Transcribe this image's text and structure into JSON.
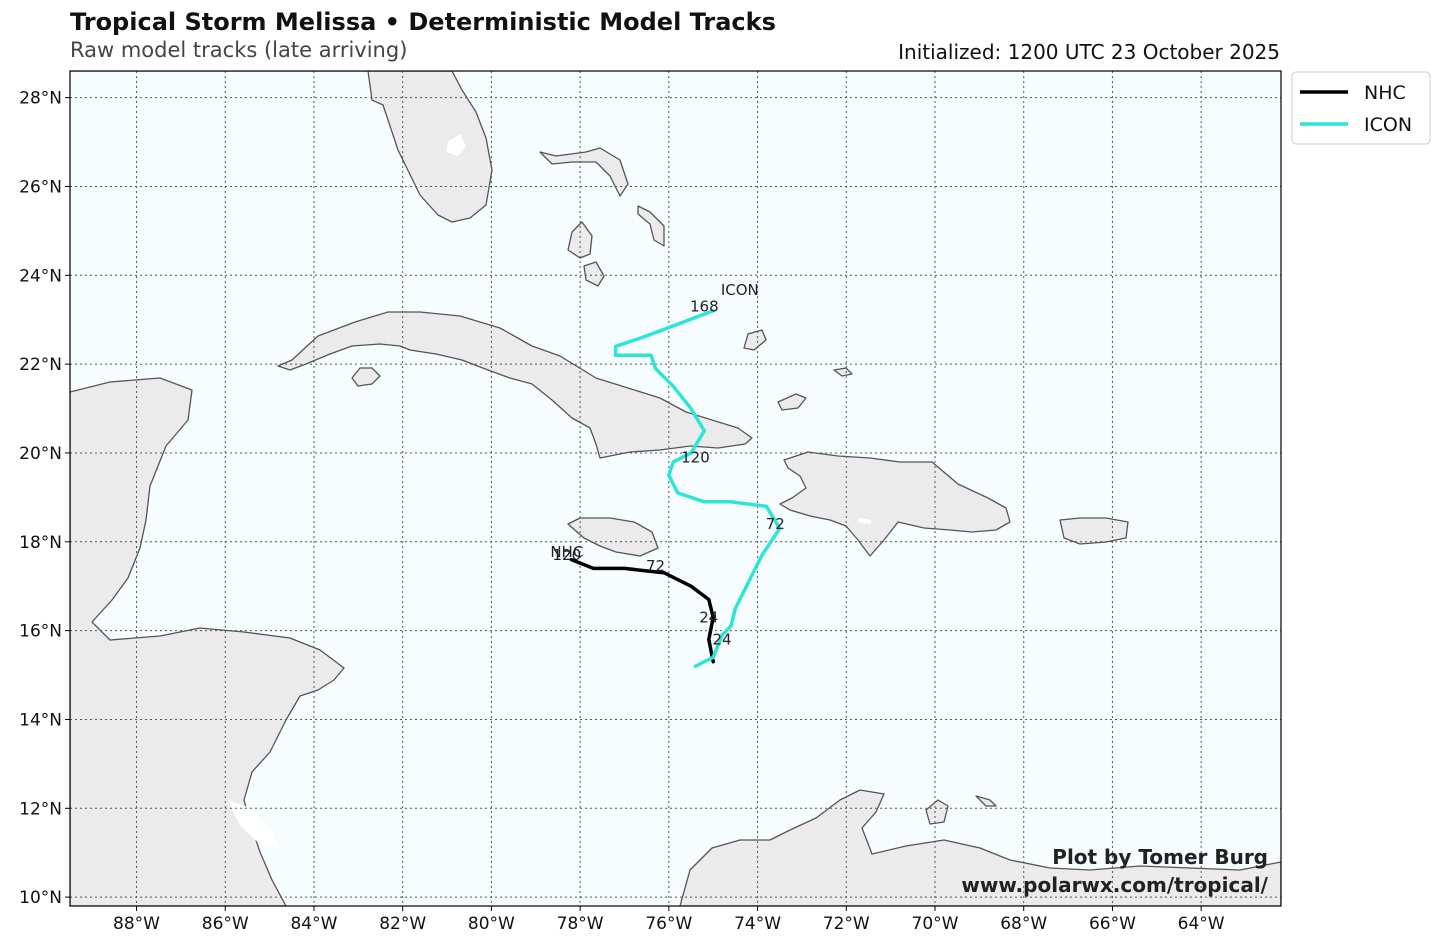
{
  "header": {
    "title": "Tropical Storm Melissa • Deterministic Model Tracks",
    "subtitle": "Raw model tracks (late arriving)",
    "initialized": "Initialized: 1200 UTC 23 October 2025"
  },
  "axes": {
    "lon_ticks": [
      "88°W",
      "86°W",
      "84°W",
      "82°W",
      "80°W",
      "78°W",
      "76°W",
      "74°W",
      "72°W",
      "70°W",
      "68°W",
      "66°W",
      "64°W"
    ],
    "lat_ticks": [
      "28°N",
      "26°N",
      "24°N",
      "22°N",
      "20°N",
      "18°N",
      "16°N",
      "14°N",
      "12°N",
      "10°N"
    ],
    "lon_range": [
      -89.5,
      -62.2
    ],
    "lat_range": [
      9.8,
      28.6
    ],
    "gridlines": "dotted"
  },
  "legend": {
    "position": "outside-top-right",
    "entries": [
      {
        "name": "NHC",
        "color": "#000000"
      },
      {
        "name": "ICON",
        "color": "#2ce4da"
      }
    ]
  },
  "tracks": [
    {
      "name": "NHC",
      "color": "#000000",
      "start_label": "NHC",
      "points": [
        [
          -75.0,
          15.3
        ],
        [
          -75.1,
          15.8
        ],
        [
          -75.0,
          16.3
        ],
        [
          -75.1,
          16.7
        ],
        [
          -75.5,
          17.0
        ],
        [
          -76.1,
          17.3
        ],
        [
          -77.0,
          17.4
        ],
        [
          -77.7,
          17.4
        ],
        [
          -78.2,
          17.6
        ]
      ],
      "hour_labels": [
        {
          "text": "24",
          "lon": -75.1,
          "lat": 16.3
        },
        {
          "text": "72",
          "lon": -76.3,
          "lat": 17.45
        },
        {
          "text": "120",
          "lon": -78.3,
          "lat": 17.7
        }
      ]
    },
    {
      "name": "ICON",
      "color": "#2ce4da",
      "start_label": "ICON",
      "points": [
        [
          -75.4,
          15.2
        ],
        [
          -75.0,
          15.4
        ],
        [
          -74.8,
          15.9
        ],
        [
          -74.6,
          16.1
        ],
        [
          -74.5,
          16.5
        ],
        [
          -74.1,
          17.3
        ],
        [
          -73.9,
          17.7
        ],
        [
          -73.5,
          18.3
        ],
        [
          -73.8,
          18.8
        ],
        [
          -74.6,
          18.9
        ],
        [
          -75.2,
          18.9
        ],
        [
          -75.8,
          19.1
        ],
        [
          -76.0,
          19.5
        ],
        [
          -75.9,
          19.8
        ],
        [
          -75.5,
          20.0
        ],
        [
          -75.2,
          20.5
        ],
        [
          -75.5,
          21.0
        ],
        [
          -75.9,
          21.5
        ],
        [
          -76.3,
          21.9
        ],
        [
          -76.4,
          22.2
        ],
        [
          -77.2,
          22.2
        ],
        [
          -77.2,
          22.4
        ],
        [
          -76.6,
          22.6
        ],
        [
          -75.8,
          22.9
        ],
        [
          -75.0,
          23.2
        ]
      ],
      "hour_labels": [
        {
          "text": "24",
          "lon": -74.8,
          "lat": 15.8
        },
        {
          "text": "72",
          "lon": -73.6,
          "lat": 18.4
        },
        {
          "text": "120",
          "lon": -75.4,
          "lat": 19.9
        },
        {
          "text": "168",
          "lon": -75.2,
          "lat": 23.3
        }
      ]
    }
  ],
  "credit": {
    "line1": "Plot by Tomer Burg",
    "line2": "www.polarwx.com/tropical/"
  },
  "colors": {
    "ocean": "#f7fcfe",
    "land": "#ebebeb",
    "coast": "#555555",
    "grid": "#555555"
  }
}
